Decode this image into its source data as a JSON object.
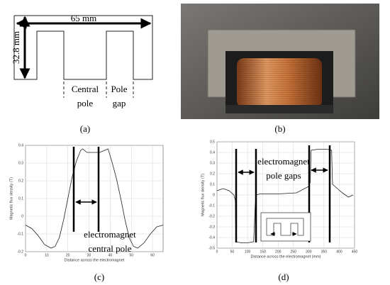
{
  "panel_a": {
    "label": "(a)",
    "width_label": "65 mm",
    "height_label": "32.8 mm",
    "central_pole": [
      "Central",
      "pole"
    ],
    "pole_gap": [
      "Pole",
      "gap"
    ]
  },
  "panel_b": {
    "label": "(b)"
  },
  "chart_data": [
    {
      "type": "line",
      "panel_label": "(c)",
      "x_label": "Distance across the electromagnet",
      "y_label": "Magnetic flux density (T)",
      "annotations": [
        "electromagnet",
        "central pole"
      ],
      "x": [
        0,
        3,
        6,
        9,
        12,
        14,
        16,
        18,
        20,
        22,
        24,
        26,
        27,
        29,
        32,
        35,
        37,
        39,
        41,
        43,
        45,
        47,
        49,
        51,
        53,
        56,
        59,
        62,
        65
      ],
      "series": [
        {
          "color": "#222222",
          "values": [
            -0.05,
            -0.07,
            -0.11,
            -0.16,
            -0.18,
            -0.17,
            -0.12,
            -0.02,
            0.1,
            0.22,
            0.31,
            0.37,
            0.38,
            0.36,
            0.36,
            0.36,
            0.37,
            0.38,
            0.3,
            0.21,
            0.1,
            -0.02,
            -0.12,
            -0.17,
            -0.18,
            -0.15,
            -0.1,
            -0.06,
            -0.05
          ]
        }
      ],
      "xlim": [
        0,
        65
      ],
      "ylim": [
        -0.2,
        0.4
      ],
      "xticks": [
        0,
        10,
        20,
        30,
        40,
        50,
        60
      ],
      "yticks": [
        -0.2,
        -0.1,
        0,
        0.1,
        0.2,
        0.3,
        0.4
      ],
      "grid": true
    },
    {
      "type": "line",
      "panel_label": "(d)",
      "x_label": "Distance across the electromagnet (mm)",
      "y_label": "Magnetic flux density (T)",
      "annotations": [
        "electromagnet",
        "pole gaps"
      ],
      "x": [
        0,
        20,
        40,
        55,
        60,
        62,
        80,
        100,
        120,
        125,
        128,
        140,
        200,
        260,
        300,
        305,
        308,
        330,
        360,
        375,
        378,
        390,
        410,
        430,
        445
      ],
      "series": [
        {
          "color": "#222222",
          "values": [
            0.04,
            0.06,
            0.04,
            0.0,
            -0.05,
            -0.44,
            -0.45,
            -0.45,
            -0.44,
            -0.1,
            0.0,
            0.01,
            0.01,
            0.02,
            0.08,
            0.12,
            0.42,
            0.43,
            0.43,
            0.42,
            0.1,
            0.07,
            0.02,
            -0.02,
            0.0
          ]
        }
      ],
      "xlim": [
        0,
        450
      ],
      "ylim": [
        -0.5,
        0.5
      ],
      "xticks": [
        0,
        50,
        100,
        150,
        200,
        250,
        300,
        350,
        400,
        450
      ],
      "yticks": [
        -0.5,
        -0.4,
        -0.3,
        -0.2,
        -0.1,
        0,
        0.1,
        0.2,
        0.3,
        0.4,
        0.5
      ],
      "grid": true
    }
  ]
}
